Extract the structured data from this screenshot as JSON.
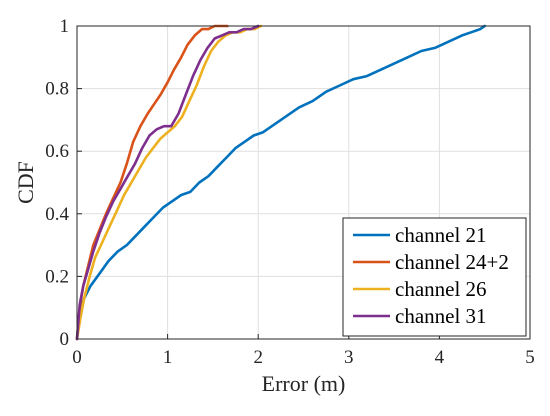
{
  "chart_data": {
    "type": "line",
    "title": "",
    "xlabel": "Error (m)",
    "ylabel": "CDF",
    "xlim": [
      0,
      5
    ],
    "ylim": [
      0,
      1
    ],
    "x_ticks": [
      0,
      1,
      2,
      3,
      4,
      5
    ],
    "y_ticks": [
      0,
      0.2,
      0.4,
      0.6,
      0.8,
      1
    ],
    "x_tick_labels": [
      "0",
      "1",
      "2",
      "3",
      "4",
      "5"
    ],
    "y_tick_labels": [
      "0",
      "0.2",
      "0.4",
      "0.6",
      "0.8",
      "1"
    ],
    "grid": true,
    "legend_position": "bottom-right",
    "series": [
      {
        "name": "channel 21",
        "color": "#0072BD",
        "x": [
          0,
          0.03,
          0.08,
          0.15,
          0.25,
          0.35,
          0.45,
          0.55,
          0.65,
          0.75,
          0.85,
          0.95,
          1.05,
          1.15,
          1.25,
          1.35,
          1.45,
          1.55,
          1.65,
          1.75,
          1.85,
          1.95,
          2.05,
          2.15,
          2.3,
          2.45,
          2.6,
          2.75,
          2.9,
          3.05,
          3.2,
          3.35,
          3.5,
          3.65,
          3.8,
          3.95,
          4.1,
          4.25,
          4.35,
          4.45,
          4.5
        ],
        "y": [
          0,
          0.08,
          0.13,
          0.17,
          0.21,
          0.25,
          0.28,
          0.3,
          0.33,
          0.36,
          0.39,
          0.42,
          0.44,
          0.46,
          0.47,
          0.5,
          0.52,
          0.55,
          0.58,
          0.61,
          0.63,
          0.65,
          0.66,
          0.68,
          0.71,
          0.74,
          0.76,
          0.79,
          0.81,
          0.83,
          0.84,
          0.86,
          0.88,
          0.9,
          0.92,
          0.93,
          0.95,
          0.97,
          0.98,
          0.99,
          1.0
        ]
      },
      {
        "name": "channel 24+2",
        "color": "#D95319",
        "x": [
          0,
          0.03,
          0.07,
          0.12,
          0.18,
          0.25,
          0.32,
          0.4,
          0.48,
          0.55,
          0.62,
          0.7,
          0.78,
          0.85,
          0.92,
          1.0,
          1.07,
          1.15,
          1.22,
          1.3,
          1.38,
          1.45,
          1.52,
          1.6,
          1.66
        ],
        "y": [
          0,
          0.1,
          0.17,
          0.23,
          0.3,
          0.35,
          0.4,
          0.45,
          0.5,
          0.56,
          0.63,
          0.68,
          0.72,
          0.75,
          0.78,
          0.82,
          0.86,
          0.9,
          0.94,
          0.97,
          0.99,
          0.99,
          1.0,
          1.0,
          1.0
        ]
      },
      {
        "name": "channel 26",
        "color": "#EDB120",
        "x": [
          0,
          0.04,
          0.08,
          0.14,
          0.2,
          0.28,
          0.36,
          0.44,
          0.52,
          0.6,
          0.68,
          0.76,
          0.84,
          0.92,
          1.0,
          1.08,
          1.16,
          1.24,
          1.32,
          1.4,
          1.48,
          1.56,
          1.64,
          1.72,
          1.8,
          1.88,
          1.96,
          2.03
        ],
        "y": [
          0,
          0.07,
          0.13,
          0.2,
          0.26,
          0.31,
          0.36,
          0.41,
          0.46,
          0.5,
          0.54,
          0.58,
          0.61,
          0.64,
          0.66,
          0.68,
          0.71,
          0.76,
          0.81,
          0.87,
          0.92,
          0.95,
          0.97,
          0.98,
          0.98,
          0.99,
          0.99,
          1.0
        ]
      },
      {
        "name": "channel 31",
        "color": "#7E2F8E",
        "x": [
          0,
          0.03,
          0.07,
          0.12,
          0.18,
          0.25,
          0.32,
          0.4,
          0.48,
          0.56,
          0.64,
          0.72,
          0.8,
          0.88,
          0.96,
          1.04,
          1.12,
          1.2,
          1.28,
          1.36,
          1.44,
          1.52,
          1.6,
          1.68,
          1.76,
          1.84,
          1.92,
          2.0
        ],
        "y": [
          0,
          0.11,
          0.17,
          0.22,
          0.28,
          0.34,
          0.39,
          0.44,
          0.48,
          0.52,
          0.56,
          0.61,
          0.65,
          0.67,
          0.68,
          0.68,
          0.72,
          0.78,
          0.84,
          0.89,
          0.93,
          0.96,
          0.97,
          0.98,
          0.98,
          0.99,
          0.99,
          1.0
        ]
      }
    ]
  }
}
